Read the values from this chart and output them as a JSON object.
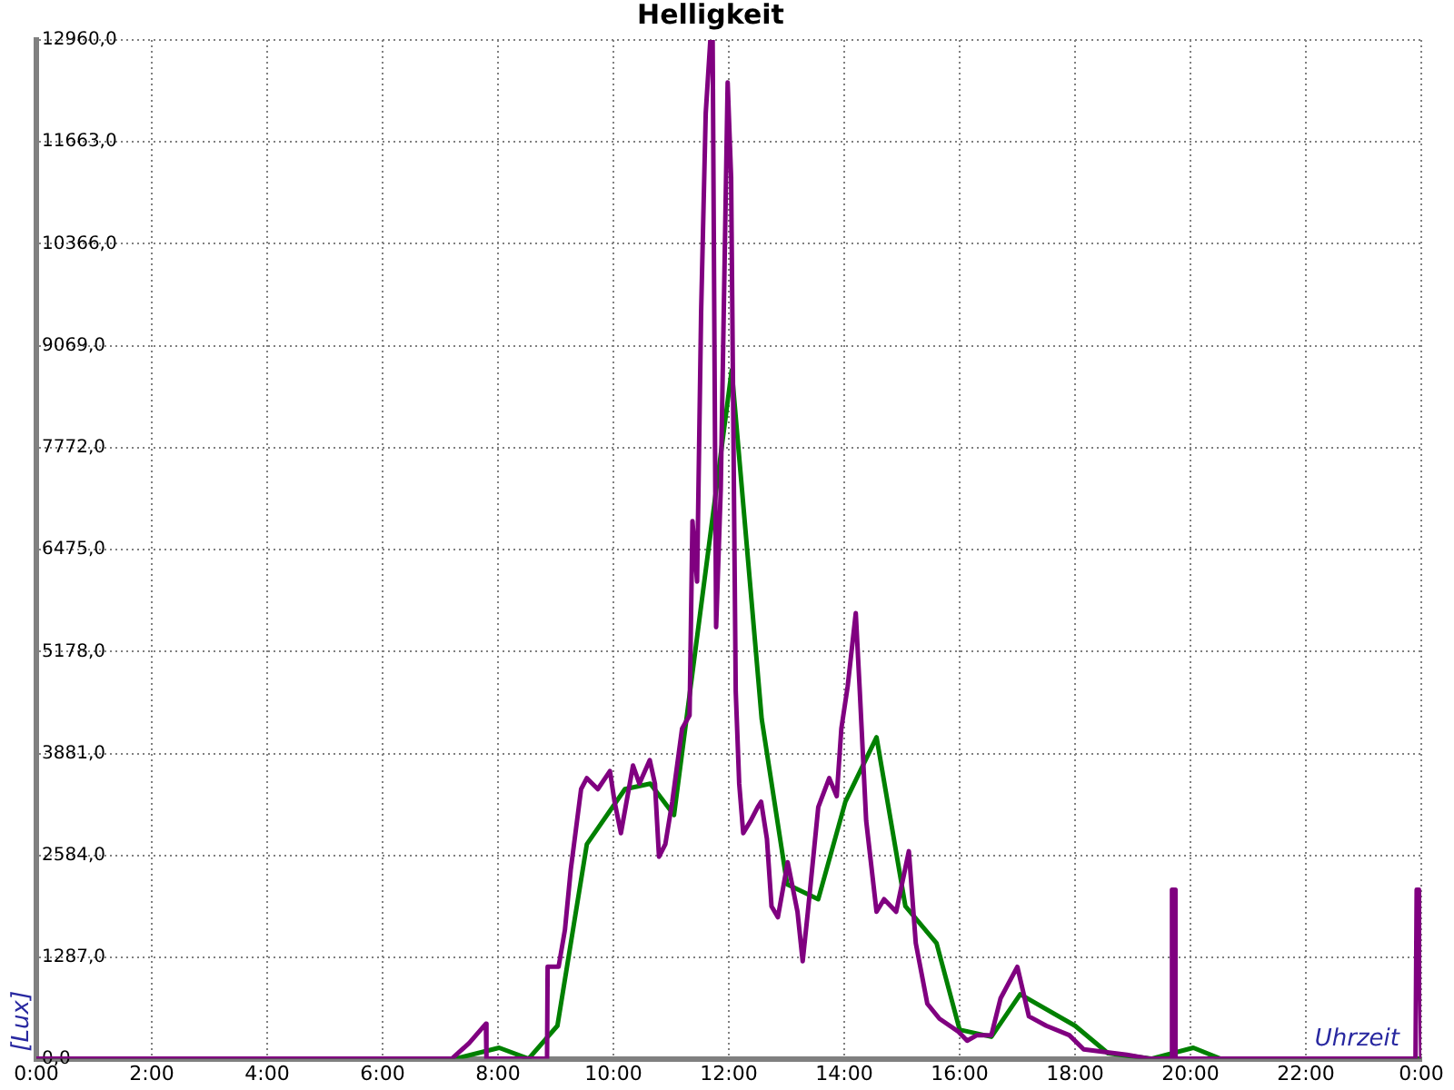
{
  "chart_data": {
    "type": "line",
    "title": "Helligkeit",
    "xlabel": "Uhrzeit",
    "ylabel": "[Lux]",
    "xlim": [
      0,
      24
    ],
    "xticks": [
      {
        "value": 0,
        "label": "0:00"
      },
      {
        "value": 2,
        "label": "2:00"
      },
      {
        "value": 4,
        "label": "4:00"
      },
      {
        "value": 6,
        "label": "6:00"
      },
      {
        "value": 8,
        "label": "8:00"
      },
      {
        "value": 10,
        "label": "10:00"
      },
      {
        "value": 12,
        "label": "12:00"
      },
      {
        "value": 14,
        "label": "14:00"
      },
      {
        "value": 16,
        "label": "16:00"
      },
      {
        "value": 18,
        "label": "18:00"
      },
      {
        "value": 20,
        "label": "20:00"
      },
      {
        "value": 22,
        "label": "22:00"
      },
      {
        "value": 24,
        "label": "0:00"
      }
    ],
    "ylim": [
      0,
      12960
    ],
    "yticks": [
      {
        "value": 0,
        "label": "0,0"
      },
      {
        "value": 1287,
        "label": "1287,0"
      },
      {
        "value": 2584,
        "label": "2584,0"
      },
      {
        "value": 3881,
        "label": "3881,0"
      },
      {
        "value": 5178,
        "label": "5178,0"
      },
      {
        "value": 6475,
        "label": "6475,0"
      },
      {
        "value": 7772,
        "label": "7772,0"
      },
      {
        "value": 9069,
        "label": "9069,0"
      },
      {
        "value": 10366,
        "label": "10366,0"
      },
      {
        "value": 11663,
        "label": "11663,0"
      },
      {
        "value": 12960,
        "label": "12960,0"
      }
    ],
    "grid": true,
    "series": [
      {
        "color": "#800080",
        "x": [
          0,
          7.2,
          7.5,
          7.79,
          7.8,
          8.85,
          8.86,
          9.05,
          9.16,
          9.26,
          9.33,
          9.44,
          9.54,
          9.73,
          9.94,
          10.02,
          10.13,
          10.34,
          10.45,
          10.63,
          10.72,
          10.79,
          10.9,
          11.02,
          11.19,
          11.32,
          11.37,
          11.45,
          11.52,
          11.6,
          11.68,
          11.72,
          11.78,
          11.86,
          11.98,
          12.04,
          12.12,
          12.18,
          12.25,
          12.38,
          12.5,
          12.56,
          12.66,
          12.74,
          12.85,
          13.02,
          13.19,
          13.28,
          13.37,
          13.55,
          13.74,
          13.87,
          13.95,
          14.06,
          14.2,
          14.27,
          14.38,
          14.56,
          14.69,
          14.9,
          15.12,
          15.24,
          15.44,
          15.65,
          15.97,
          16.13,
          16.3,
          16.55,
          16.71,
          17.0,
          17.2,
          17.5,
          17.9,
          18.15,
          18.9,
          19.3,
          19.66,
          19.68,
          19.72,
          19.74,
          23.9,
          23.92,
          23.96,
          24
        ],
        "values": [
          0,
          0,
          200,
          445,
          0,
          0,
          1170,
          1170,
          1640,
          2400,
          2800,
          3430,
          3570,
          3430,
          3660,
          3270,
          2870,
          3730,
          3500,
          3800,
          3500,
          2570,
          2730,
          3270,
          4200,
          4370,
          6840,
          6070,
          9500,
          12030,
          12960,
          12960,
          5490,
          7240,
          12420,
          11210,
          4670,
          3500,
          2870,
          3030,
          3200,
          3270,
          2800,
          1940,
          1800,
          2500,
          1870,
          1240,
          1870,
          3200,
          3570,
          3340,
          4200,
          4740,
          5670,
          4670,
          3030,
          1870,
          2030,
          1870,
          2640,
          1470,
          700,
          510,
          350,
          230,
          300,
          300,
          770,
          1170,
          540,
          420,
          300,
          120,
          50,
          0,
          0,
          2150,
          2150,
          0,
          0,
          2150,
          2150,
          0
        ]
      },
      {
        "color": "#008000",
        "x": [
          0,
          7.26,
          8.02,
          8.53,
          9.03,
          9.54,
          10.2,
          10.64,
          11.05,
          12.05,
          12.57,
          13.01,
          13.55,
          14.02,
          14.56,
          15.06,
          15.6,
          16.0,
          16.55,
          17.05,
          18.0,
          18.57,
          19.32,
          20.05,
          20.52,
          24
        ],
        "values": [
          0,
          0,
          140,
          0,
          420,
          2730,
          3430,
          3500,
          3100,
          8760,
          4320,
          2220,
          2030,
          3270,
          4090,
          1940,
          1470,
          370,
          280,
          820,
          420,
          70,
          0,
          140,
          0,
          0
        ]
      }
    ]
  }
}
